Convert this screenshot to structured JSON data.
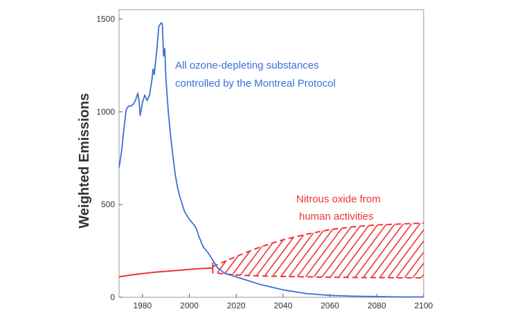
{
  "chart_data": {
    "type": "line",
    "ylabel": "Weighted Emissions",
    "xlabel": "",
    "title": "",
    "xlim": [
      1970,
      2100
    ],
    "ylim": [
      0,
      1550
    ],
    "x_ticks": [
      1980,
      2000,
      2020,
      2040,
      2060,
      2080,
      2100
    ],
    "y_ticks": [
      0,
      500,
      1000,
      1500
    ],
    "grid": false,
    "legend": "none",
    "series": [
      {
        "name": "All ozone-depleting substances controlled by the Montreal Protocol",
        "color": "#3a6fd8",
        "points": [
          [
            1970,
            700
          ],
          [
            1971,
            780
          ],
          [
            1972,
            900
          ],
          [
            1973,
            1010
          ],
          [
            1974,
            1030
          ],
          [
            1975,
            1030
          ],
          [
            1976,
            1040
          ],
          [
            1977,
            1060
          ],
          [
            1978,
            1100
          ],
          [
            1978.5,
            1060
          ],
          [
            1979,
            980
          ],
          [
            1980,
            1050
          ],
          [
            1981,
            1090
          ],
          [
            1982,
            1060
          ],
          [
            1983,
            1090
          ],
          [
            1984,
            1170
          ],
          [
            1984.5,
            1230
          ],
          [
            1985,
            1200
          ],
          [
            1986,
            1320
          ],
          [
            1987,
            1460
          ],
          [
            1988,
            1480
          ],
          [
            1988.5,
            1470
          ],
          [
            1989,
            1300
          ],
          [
            1989.5,
            1340
          ],
          [
            1990,
            1180
          ],
          [
            1991,
            1000
          ],
          [
            1992,
            870
          ],
          [
            1993,
            760
          ],
          [
            1994,
            660
          ],
          [
            1995,
            590
          ],
          [
            1996,
            540
          ],
          [
            1997,
            500
          ],
          [
            1998,
            460
          ],
          [
            2000,
            420
          ],
          [
            2002,
            390
          ],
          [
            2003,
            370
          ],
          [
            2004,
            330
          ],
          [
            2006,
            270
          ],
          [
            2008,
            240
          ],
          [
            2010,
            200
          ],
          [
            2012,
            160
          ],
          [
            2015,
            130
          ],
          [
            2020,
            110
          ],
          [
            2025,
            90
          ],
          [
            2030,
            70
          ],
          [
            2040,
            40
          ],
          [
            2050,
            20
          ],
          [
            2060,
            10
          ],
          [
            2070,
            6
          ],
          [
            2080,
            4
          ],
          [
            2090,
            2
          ],
          [
            2100,
            2
          ]
        ]
      },
      {
        "name": "Nitrous oxide from human activities",
        "color": "#ee3333",
        "historical": [
          [
            1970,
            110
          ],
          [
            1975,
            120
          ],
          [
            1980,
            128
          ],
          [
            1985,
            135
          ],
          [
            1990,
            140
          ],
          [
            1995,
            145
          ],
          [
            2000,
            150
          ],
          [
            2005,
            155
          ],
          [
            2010,
            158
          ]
        ],
        "projection_upper": [
          [
            2010,
            165
          ],
          [
            2020,
            220
          ],
          [
            2030,
            270
          ],
          [
            2040,
            310
          ],
          [
            2050,
            340
          ],
          [
            2060,
            365
          ],
          [
            2070,
            380
          ],
          [
            2080,
            390
          ],
          [
            2090,
            395
          ],
          [
            2100,
            400
          ]
        ],
        "projection_lower": [
          [
            2012,
            130
          ],
          [
            2020,
            120
          ],
          [
            2030,
            115
          ],
          [
            2040,
            112
          ],
          [
            2050,
            110
          ],
          [
            2060,
            108
          ],
          [
            2070,
            107
          ],
          [
            2080,
            106
          ],
          [
            2090,
            105
          ],
          [
            2100,
            105
          ]
        ]
      }
    ],
    "annotations": [
      {
        "lines": [
          "All ozone-depleting substances",
          "controlled by the Montreal Protocol"
        ],
        "color": "#3a6fd8"
      },
      {
        "lines": [
          "Nitrous oxide from",
          "human activities"
        ],
        "color": "#ee3333"
      }
    ]
  }
}
